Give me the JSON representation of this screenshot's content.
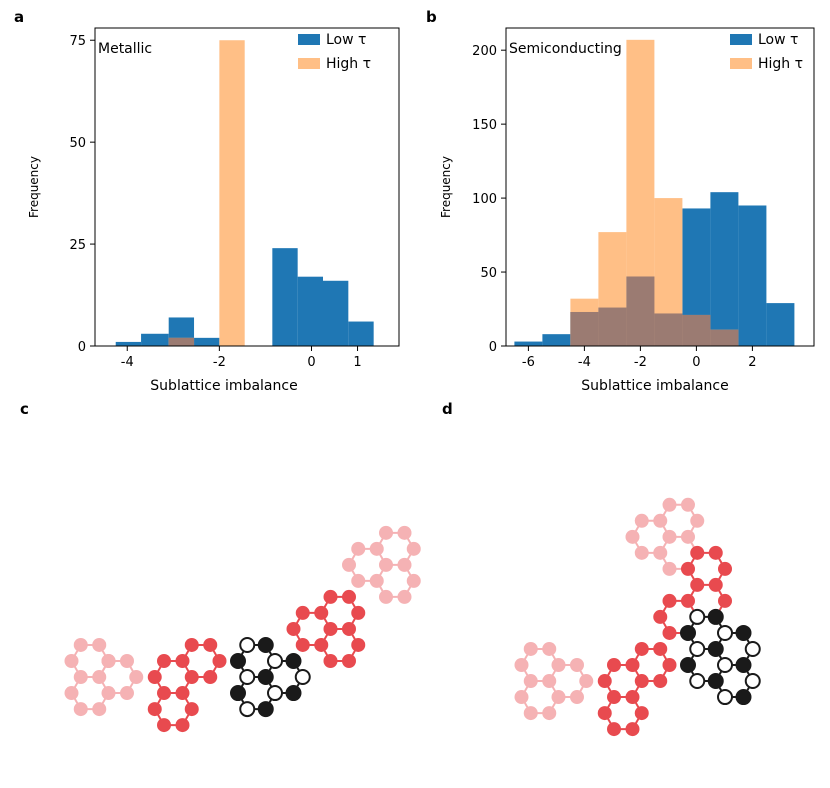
{
  "panel_labels": [
    "a",
    "b",
    "c",
    "d"
  ],
  "colors": {
    "low": "#1f77b4",
    "high": "#ffbf86",
    "overlap": "#9b7b72",
    "light_pink": "#f5b2b4",
    "red": "#e84a4f",
    "black": "#1a1a1a"
  },
  "chart_data": [
    {
      "type": "bar",
      "panel": "a",
      "annotation": "Metallic",
      "xlabel": "Sublattice imbalance",
      "ylabel": "Frequency",
      "xlim": [
        -4.7,
        1.9
      ],
      "ylim": [
        0,
        78
      ],
      "x_ticks": [
        -4,
        -2,
        0,
        1
      ],
      "x_tick_labels": [
        "-4",
        "-2",
        "0",
        "1"
      ],
      "y_ticks": [
        0,
        25,
        50,
        75
      ],
      "legend": [
        "Low τ",
        "High τ"
      ],
      "legend_position": "top-right",
      "series": [
        {
          "name": "Low τ",
          "bins": [
            [
              -4.25,
              -3.7
            ],
            [
              -3.7,
              -3.1
            ],
            [
              -3.1,
              -2.55
            ],
            [
              -2.55,
              -2.0
            ],
            [
              -2.0,
              -1.45
            ],
            [
              -1.45,
              -0.85
            ],
            [
              -0.85,
              -0.3
            ],
            [
              -0.3,
              0.25
            ],
            [
              0.25,
              0.8
            ],
            [
              0.8,
              1.35
            ],
            [
              1.35,
              1.8
            ]
          ],
          "values": [
            1,
            3,
            7,
            2,
            0,
            0,
            24,
            17,
            16,
            6,
            0
          ]
        },
        {
          "name": "High τ",
          "bins": [
            [
              -4.25,
              -3.7
            ],
            [
              -3.7,
              -3.1
            ],
            [
              -3.1,
              -2.55
            ],
            [
              -2.55,
              -2.0
            ],
            [
              -2.0,
              -1.45
            ],
            [
              -1.45,
              -0.85
            ],
            [
              -0.85,
              -0.3
            ],
            [
              -0.3,
              0.25
            ],
            [
              0.25,
              0.8
            ],
            [
              0.8,
              1.35
            ],
            [
              1.35,
              1.8
            ]
          ],
          "values": [
            0,
            0,
            2,
            0,
            75,
            0,
            0,
            0,
            0,
            0,
            0
          ]
        }
      ]
    },
    {
      "type": "bar",
      "panel": "b",
      "annotation": "Semiconducting",
      "xlabel": "Sublattice imbalance",
      "ylabel": "Frequency",
      "xlim": [
        -6.8,
        4.2
      ],
      "ylim": [
        0,
        215
      ],
      "x_ticks": [
        -6,
        -4,
        -2,
        0,
        2
      ],
      "x_tick_labels": [
        "-6",
        "-4",
        "-2",
        "0",
        "2"
      ],
      "y_ticks": [
        0,
        50,
        100,
        150,
        200
      ],
      "legend": [
        "Low τ",
        "High τ"
      ],
      "legend_position": "top-right",
      "series": [
        {
          "name": "Low τ",
          "bins": [
            [
              -6.5,
              -5.5
            ],
            [
              -5.5,
              -4.5
            ],
            [
              -4.5,
              -3.5
            ],
            [
              -3.5,
              -2.5
            ],
            [
              -2.5,
              -1.5
            ],
            [
              -1.5,
              -0.5
            ],
            [
              -0.5,
              0.5
            ],
            [
              0.5,
              1.5
            ],
            [
              1.5,
              2.5
            ],
            [
              2.5,
              3.5
            ]
          ],
          "values": [
            3,
            8,
            23,
            26,
            47,
            22,
            93,
            104,
            95,
            29
          ]
        },
        {
          "name": "High τ",
          "bins": [
            [
              -6.5,
              -5.5
            ],
            [
              -5.5,
              -4.5
            ],
            [
              -4.5,
              -3.5
            ],
            [
              -3.5,
              -2.5
            ],
            [
              -2.5,
              -1.5
            ],
            [
              -1.5,
              -0.5
            ],
            [
              -0.5,
              0.5
            ],
            [
              0.5,
              1.5
            ],
            [
              1.5,
              2.5
            ],
            [
              2.5,
              3.5
            ]
          ],
          "values": [
            0,
            0,
            32,
            77,
            207,
            100,
            21,
            11,
            0,
            0
          ]
        }
      ]
    }
  ]
}
